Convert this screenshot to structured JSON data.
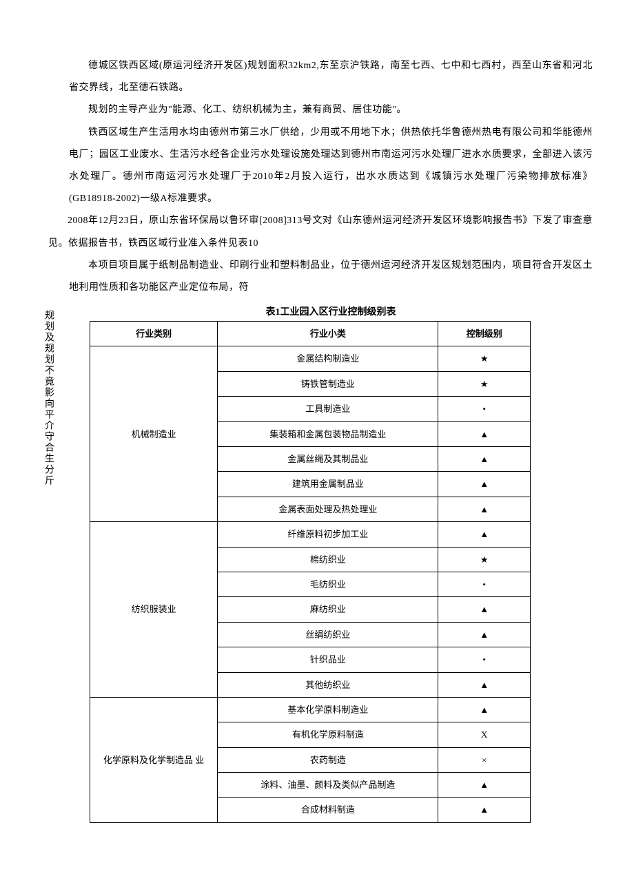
{
  "para1": "德城区铁西区域(原运河经济开发区)规划面积32km2,东至京沪铁路，南至七西、七中和七西村，西至山东省和河北省交界线，北至德石铁路。",
  "para2": "规划的主导产业为\"能源、化工、纺织机械为主，兼有商贸、居住功能\"。",
  "para3": "铁西区域生产生活用水均由德州市第三水厂供给，少用或不用地下水；供热依托华鲁德州热电有限公司和华能德州电厂；园区工业废水、生活污水经各企业污水处理设施处理达到德州市南运河污水处理厂进水水质要求，全部进入该污水处理厂。德州市南运河污水处理厂于2010年2月投入运行，出水水质达到《城镇污水处理厂污染物排放标准》(GB18918-2002)一级A标准要求。",
  "para4": "2008年12月23日，原山东省环保局以鲁环审[2008]313号文对《山东德州运河经济开发区环境影响报告书》下发了审查意见。依据报告书，铁西区域行业准入条件见表10",
  "para5": "本项目项目属于纸制品制造业、印刷行业和塑料制品业，位于德州运河经济开发区规划范围内，项目符合开发区土地利用性质和各功能区产业定位布局，符",
  "vertical_label": "规划及规划不竟影向平介守合生分斤",
  "table_caption": "表1工业园入区行业控制级别表",
  "table": {
    "headers": [
      "行业类别",
      "行业小类",
      "控制级别"
    ],
    "groups": [
      {
        "category": "机械制造业",
        "rows": [
          {
            "sub": "金属结构制造业",
            "level": "★"
          },
          {
            "sub": "铸铁管制造业",
            "level": "★"
          },
          {
            "sub": "工具制造业",
            "level": "•"
          },
          {
            "sub": "集装箱和金属包装物品制造业",
            "level": "▲"
          },
          {
            "sub": "金属丝绳及其制品业",
            "level": "▲"
          },
          {
            "sub": "建筑用金属制品业",
            "level": "▲"
          },
          {
            "sub": "金属表面处理及热处理业",
            "level": "▲"
          }
        ]
      },
      {
        "category": "纺织服装业",
        "rows": [
          {
            "sub": "纤维原料初步加工业",
            "level": "▲"
          },
          {
            "sub": "棉纺织业",
            "level": "★"
          },
          {
            "sub": "毛纺织业",
            "level": "•"
          },
          {
            "sub": "麻纺织业",
            "level": "▲"
          },
          {
            "sub": "丝绢纺织业",
            "level": "▲"
          },
          {
            "sub": "针织品业",
            "level": "•"
          },
          {
            "sub": "其他纺织业",
            "level": "▲"
          }
        ]
      },
      {
        "category": "化学原料及化学制造品 业",
        "rows": [
          {
            "sub": "基本化学原料制造业",
            "level": "▲"
          },
          {
            "sub": "有机化学原料制造",
            "level": "X"
          },
          {
            "sub": "农药制造",
            "level": "×"
          },
          {
            "sub": "涂料、油墨、颜料及类似产品制造",
            "level": "▲"
          },
          {
            "sub": "合成材料制造",
            "level": "▲"
          }
        ]
      }
    ]
  }
}
